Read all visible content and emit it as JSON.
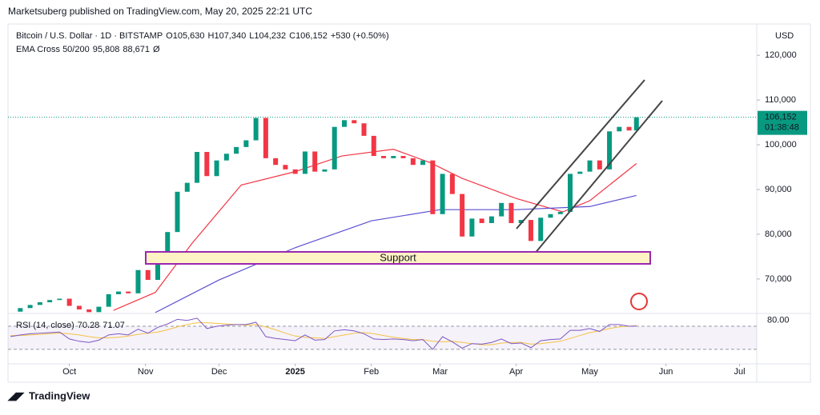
{
  "header": {
    "publisher": "Marketsuberg published on TradingView.com, May 20, 2025 22:21 UTC",
    "brand": "TradingView"
  },
  "chart_data": {
    "type": "candlestick",
    "symbol": "Bitcoin / U.S. Dollar · 1D · BITSTAMP",
    "ohlc": [
      {
        "key": "O",
        "value": "105,630"
      },
      {
        "key": "H",
        "value": "107,340"
      },
      {
        "key": "L",
        "value": "104,232"
      },
      {
        "key": "C",
        "value": "106,152"
      }
    ],
    "change": "+530 (+0.50%)",
    "currency": "USD",
    "last_price": 106152,
    "last_price_label": "106,152",
    "countdown": "01:38:48",
    "up_color": "#089981",
    "down_color": "#f23645",
    "x": [
      "2024-09-07",
      "2024-09-11",
      "2024-09-15",
      "2024-09-19",
      "2024-09-23",
      "2024-09-27",
      "2024-10-01",
      "2024-10-05",
      "2024-10-09",
      "2024-10-13",
      "2024-10-17",
      "2024-10-21",
      "2024-10-25",
      "2024-10-29",
      "2024-11-02",
      "2024-11-06",
      "2024-11-10",
      "2024-11-14",
      "2024-11-18",
      "2024-11-22",
      "2024-11-26",
      "2024-11-30",
      "2024-12-04",
      "2024-12-08",
      "2024-12-12",
      "2024-12-16",
      "2024-12-20",
      "2024-12-24",
      "2024-12-28",
      "2025-01-01",
      "2025-01-05",
      "2025-01-09",
      "2025-01-13",
      "2025-01-17",
      "2025-01-21",
      "2025-01-25",
      "2025-01-29",
      "2025-02-02",
      "2025-02-06",
      "2025-02-10",
      "2025-02-14",
      "2025-02-18",
      "2025-02-22",
      "2025-02-26",
      "2025-03-02",
      "2025-03-06",
      "2025-03-10",
      "2025-03-14",
      "2025-03-18",
      "2025-03-22",
      "2025-03-26",
      "2025-03-30",
      "2025-04-03",
      "2025-04-07",
      "2025-04-11",
      "2025-04-15",
      "2025-04-19",
      "2025-04-23",
      "2025-04-27",
      "2025-05-01",
      "2025-05-05",
      "2025-05-09",
      "2025-05-13",
      "2025-05-17",
      "2025-05-20"
    ],
    "close": [
      62700,
      63500,
      64200,
      64800,
      65300,
      65600,
      64000,
      63200,
      62600,
      63800,
      66600,
      67200,
      66800,
      72000,
      69800,
      75000,
      80500,
      89500,
      91500,
      98400,
      93000,
      96500,
      98000,
      99500,
      101000,
      106000,
      97000,
      95500,
      94500,
      93500,
      98500,
      94000,
      94500,
      104000,
      105500,
      104800,
      102000,
      97500,
      97000,
      97500,
      97000,
      95500,
      96500,
      84500,
      93500,
      89000,
      79500,
      83500,
      82500,
      84000,
      87000,
      82500,
      83200,
      78500,
      83700,
      84500,
      85000,
      93500,
      94000,
      96500,
      94500,
      103000,
      104000,
      103200,
      106152
    ],
    "ema_title": "EMA Cross 50/200",
    "ema_suffix": "Ø",
    "ema": [
      {
        "name": "95,808",
        "color": "#f23645",
        "x": [
          "2024-10-19",
          "2024-11-05",
          "2024-11-20",
          "2024-12-10",
          "2025-01-01",
          "2025-01-20",
          "2025-02-10",
          "2025-02-25",
          "2025-03-10",
          "2025-04-01",
          "2025-04-20",
          "2025-05-01",
          "2025-05-20"
        ],
        "values": [
          63000,
          67000,
          78000,
          91000,
          94000,
          97500,
          99000,
          96000,
          92500,
          88000,
          85000,
          87500,
          95808
        ]
      },
      {
        "name": "88,671",
        "color": "#5b4fd1",
        "x": [
          "2024-11-05",
          "2024-12-01",
          "2025-01-01",
          "2025-02-01",
          "2025-03-01",
          "2025-04-01",
          "2025-05-01",
          "2025-05-20"
        ],
        "values": [
          62500,
          69800,
          77000,
          83000,
          85500,
          85500,
          86200,
          88671
        ]
      }
    ],
    "ylim": [
      62300,
      127000
    ],
    "yticks": [
      {
        "value": 70000,
        "label": "70,000"
      },
      {
        "value": 80000,
        "label": "80,000"
      },
      {
        "value": 90000,
        "label": "90,000"
      },
      {
        "value": 100000,
        "label": "100,000"
      },
      {
        "value": 110000,
        "label": "110,000"
      },
      {
        "value": 120000,
        "label": "120,000"
      }
    ],
    "xlim": [
      "2024-09-06",
      "2025-07-08"
    ],
    "xticks": [
      {
        "value": "2024-10-01",
        "label": "Oct"
      },
      {
        "value": "2024-11-01",
        "label": "Nov"
      },
      {
        "value": "2024-12-01",
        "label": "Dec"
      },
      {
        "value": "2025-01-01",
        "label": "2025"
      },
      {
        "value": "2025-02-01",
        "label": "Feb"
      },
      {
        "value": "2025-03-01",
        "label": "Mar"
      },
      {
        "value": "2025-04-01",
        "label": "Apr"
      },
      {
        "value": "2025-05-01",
        "label": "May"
      },
      {
        "value": "2025-06-01",
        "label": "Jun"
      },
      {
        "value": "2025-07-01",
        "label": "Jul"
      }
    ],
    "annotation": "Support",
    "rsi": {
      "title": "RSI (14, close)",
      "line_label": "70.28",
      "ma_label": "71.07",
      "line_color": "#7e57c2",
      "ma_color": "#f5c242",
      "values": [
        52,
        55,
        57,
        58,
        59,
        60,
        48,
        44,
        42,
        46,
        55,
        57,
        55,
        65,
        58,
        68,
        74,
        82,
        80,
        84,
        66,
        70,
        72,
        73,
        73,
        77,
        52,
        49,
        47,
        45,
        55,
        46,
        47,
        62,
        64,
        62,
        57,
        48,
        47,
        48,
        47,
        45,
        47,
        30,
        52,
        43,
        32,
        40,
        39,
        42,
        48,
        40,
        41,
        33,
        45,
        47,
        48,
        63,
        63,
        66,
        61,
        73,
        73,
        70,
        70.28
      ],
      "ma_values": [
        54,
        54,
        55,
        56,
        57,
        58,
        57,
        55,
        52,
        50,
        50,
        51,
        53,
        56,
        58,
        60,
        64,
        69,
        73,
        76,
        76,
        75,
        74,
        73,
        72,
        73,
        69,
        64,
        58,
        53,
        51,
        50,
        49,
        52,
        55,
        58,
        59,
        57,
        54,
        51,
        49,
        47,
        47,
        44,
        43,
        44,
        42,
        40,
        38,
        38,
        41,
        42,
        42,
        39,
        40,
        42,
        44,
        49,
        54,
        59,
        62,
        66,
        69,
        70,
        71.07
      ],
      "ylim": [
        5,
        88
      ],
      "yticks": [
        {
          "value": 80,
          "label": "80.00"
        }
      ],
      "bands": [
        70,
        30
      ]
    }
  }
}
